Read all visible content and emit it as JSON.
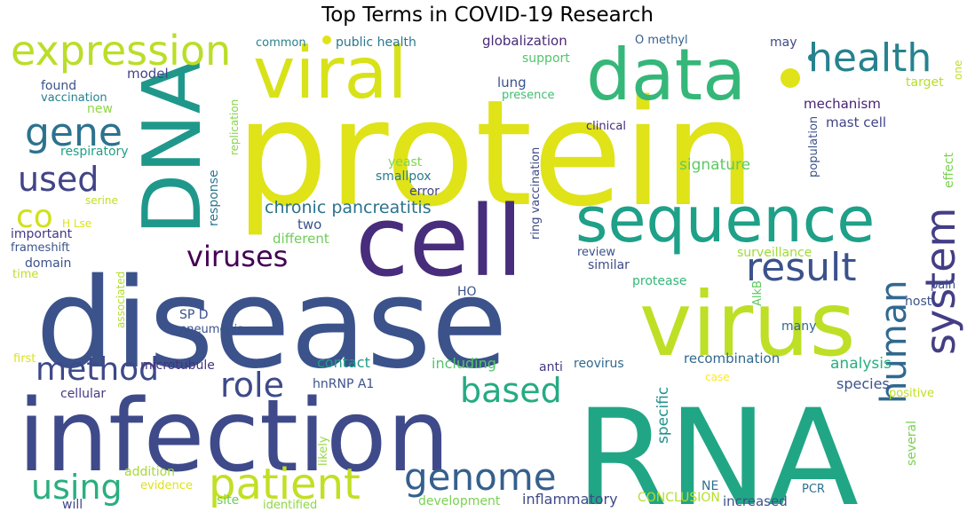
{
  "chart_data": {
    "type": "wordcloud",
    "title": "Top Terms in COVID-19 Research",
    "words": [
      {
        "text": "protein",
        "size": 165,
        "color": "#dfe318"
      },
      {
        "text": "disease",
        "size": 140,
        "color": "#3b528b"
      },
      {
        "text": "RNA",
        "size": 150,
        "color": "#21a685"
      },
      {
        "text": "infection",
        "size": 112,
        "color": "#3e4a89"
      },
      {
        "text": "virus",
        "size": 100,
        "color": "#bddf26"
      },
      {
        "text": "cell",
        "size": 110,
        "color": "#472d7b"
      },
      {
        "text": "DNA",
        "size": 90,
        "color": "#1f988b"
      },
      {
        "text": "viral",
        "size": 80,
        "color": "#d8e219"
      },
      {
        "text": "data",
        "size": 80,
        "color": "#35b779"
      },
      {
        "text": "sequence",
        "size": 70,
        "color": "#1fa088"
      },
      {
        "text": "expression",
        "size": 46,
        "color": "#bade28"
      },
      {
        "text": "health",
        "size": 44,
        "color": "#26828e"
      },
      {
        "text": "result",
        "size": 44,
        "color": "#3b528b"
      },
      {
        "text": "gene",
        "size": 44,
        "color": "#2c728e"
      },
      {
        "text": "patient",
        "size": 48,
        "color": "#c2df23"
      },
      {
        "text": "genome",
        "size": 42,
        "color": "#355f8d"
      },
      {
        "text": "system",
        "size": 46,
        "color": "#433e85"
      },
      {
        "text": "human",
        "size": 40,
        "color": "#31688e"
      },
      {
        "text": "used",
        "size": 38,
        "color": "#414487"
      },
      {
        "text": "method",
        "size": 36,
        "color": "#3e4989"
      },
      {
        "text": "using",
        "size": 38,
        "color": "#29af7f"
      },
      {
        "text": "based",
        "size": 38,
        "color": "#25ab82"
      },
      {
        "text": "role",
        "size": 38,
        "color": "#3e4a89"
      },
      {
        "text": "viruses",
        "size": 32,
        "color": "#440154"
      },
      {
        "text": "co",
        "size": 36,
        "color": "#d0e11c"
      },
      {
        "text": "chronic pancreatitis",
        "size": 19,
        "color": "#2c728e"
      },
      {
        "text": "mechanism",
        "size": 15,
        "color": "#482475"
      },
      {
        "text": "mast cell",
        "size": 15,
        "color": "#414487"
      },
      {
        "text": "signature",
        "size": 17,
        "color": "#5ec962"
      },
      {
        "text": "recombination",
        "size": 15,
        "color": "#31688e"
      },
      {
        "text": "analysis",
        "size": 17,
        "color": "#28ae80"
      },
      {
        "text": "species",
        "size": 16,
        "color": "#3b528b"
      },
      {
        "text": "surveillance",
        "size": 14,
        "color": "#a0da39"
      },
      {
        "text": "inflammatory",
        "size": 16,
        "color": "#3e4a89"
      },
      {
        "text": "increased",
        "size": 15,
        "color": "#3b528b"
      },
      {
        "text": "development",
        "size": 14,
        "color": "#7ad151"
      },
      {
        "text": "identified",
        "size": 13,
        "color": "#8fd744"
      },
      {
        "text": "addition",
        "size": 14,
        "color": "#a5db36"
      },
      {
        "text": "evidence",
        "size": 13,
        "color": "#dde318"
      },
      {
        "text": "will",
        "size": 14,
        "color": "#414487"
      },
      {
        "text": "site",
        "size": 14,
        "color": "#6ccd5a"
      },
      {
        "text": "cellular",
        "size": 14,
        "color": "#443a83"
      },
      {
        "text": "first",
        "size": 13,
        "color": "#dde318"
      },
      {
        "text": "pneumonia",
        "size": 13,
        "color": "#3b528b"
      },
      {
        "text": "microtubule",
        "size": 14,
        "color": "#46327e"
      },
      {
        "text": "hnRNP A1",
        "size": 14,
        "color": "#3b528b"
      },
      {
        "text": "contact",
        "size": 16,
        "color": "#1f9a8a"
      },
      {
        "text": "including",
        "size": 16,
        "color": "#52c569"
      },
      {
        "text": "reovirus",
        "size": 14,
        "color": "#31688e"
      },
      {
        "text": "anti",
        "size": 14,
        "color": "#453781"
      },
      {
        "text": "specific",
        "size": 17,
        "color": "#21918c"
      },
      {
        "text": "case",
        "size": 12,
        "color": "#fde725"
      },
      {
        "text": "positive",
        "size": 13,
        "color": "#c0df25"
      },
      {
        "text": "several",
        "size": 14,
        "color": "#7ad151"
      },
      {
        "text": "likely",
        "size": 13,
        "color": "#95d840"
      },
      {
        "text": "NE",
        "size": 14,
        "color": "#2d708e"
      },
      {
        "text": "CONCLUSION",
        "size": 14,
        "color": "#b5de2b"
      },
      {
        "text": "PCR",
        "size": 13,
        "color": "#2d708e"
      },
      {
        "text": "many",
        "size": 14,
        "color": "#31688e"
      },
      {
        "text": "AlkB",
        "size": 13,
        "color": "#5ec962"
      },
      {
        "text": "protease",
        "size": 14,
        "color": "#35b779"
      },
      {
        "text": "similar",
        "size": 14,
        "color": "#3e4a89"
      },
      {
        "text": "review",
        "size": 13,
        "color": "#3b528b"
      },
      {
        "text": "pain",
        "size": 13,
        "color": "#3e4a89"
      },
      {
        "text": "host",
        "size": 14,
        "color": "#3b528b"
      },
      {
        "text": "effect",
        "size": 14,
        "color": "#7ad151"
      },
      {
        "text": "population",
        "size": 13,
        "color": "#3b528b"
      },
      {
        "text": "clinical",
        "size": 13,
        "color": "#472c7a"
      },
      {
        "text": "ring vaccination",
        "size": 13,
        "color": "#3e4a89"
      },
      {
        "text": "yeast",
        "size": 14,
        "color": "#84d44b"
      },
      {
        "text": "smallpox",
        "size": 14,
        "color": "#287d8e"
      },
      {
        "text": "error",
        "size": 14,
        "color": "#414487"
      },
      {
        "text": "two",
        "size": 15,
        "color": "#3b528b"
      },
      {
        "text": "different",
        "size": 15,
        "color": "#6ece58"
      },
      {
        "text": "important",
        "size": 14,
        "color": "#453781"
      },
      {
        "text": "frameshift",
        "size": 13,
        "color": "#39558c"
      },
      {
        "text": "domain",
        "size": 14,
        "color": "#3b528b"
      },
      {
        "text": "time",
        "size": 13,
        "color": "#c0df25"
      },
      {
        "text": "H Lse",
        "size": 12,
        "color": "#dde318"
      },
      {
        "text": "serine",
        "size": 12,
        "color": "#c2df23"
      },
      {
        "text": "associated",
        "size": 12,
        "color": "#b5de2b"
      },
      {
        "text": "response",
        "size": 14,
        "color": "#2a778e"
      },
      {
        "text": "replication",
        "size": 12,
        "color": "#86d549"
      },
      {
        "text": "SP D",
        "size": 14,
        "color": "#3b528b"
      },
      {
        "text": "HO",
        "size": 14,
        "color": "#3b528b"
      },
      {
        "text": "respiratory",
        "size": 14,
        "color": "#1fa088"
      },
      {
        "text": "new",
        "size": 14,
        "color": "#8fd744"
      },
      {
        "text": "vaccination",
        "size": 13,
        "color": "#26828e"
      },
      {
        "text": "found",
        "size": 14,
        "color": "#3b528b"
      },
      {
        "text": "model",
        "size": 15,
        "color": "#414487"
      },
      {
        "text": "common",
        "size": 13,
        "color": "#26828e"
      },
      {
        "text": "public health",
        "size": 14,
        "color": "#2a788e"
      },
      {
        "text": "globalization",
        "size": 15,
        "color": "#482878"
      },
      {
        "text": "O methyl",
        "size": 13,
        "color": "#355f8d"
      },
      {
        "text": "may",
        "size": 14,
        "color": "#3e4989"
      },
      {
        "text": "one",
        "size": 12,
        "color": "#bddf26"
      },
      {
        "text": "support",
        "size": 14,
        "color": "#52c569"
      },
      {
        "text": "lung",
        "size": 15,
        "color": "#3b528b"
      },
      {
        "text": "presence",
        "size": 13,
        "color": "#40bd72"
      },
      {
        "text": "target",
        "size": 14,
        "color": "#b5de2b"
      }
    ]
  }
}
